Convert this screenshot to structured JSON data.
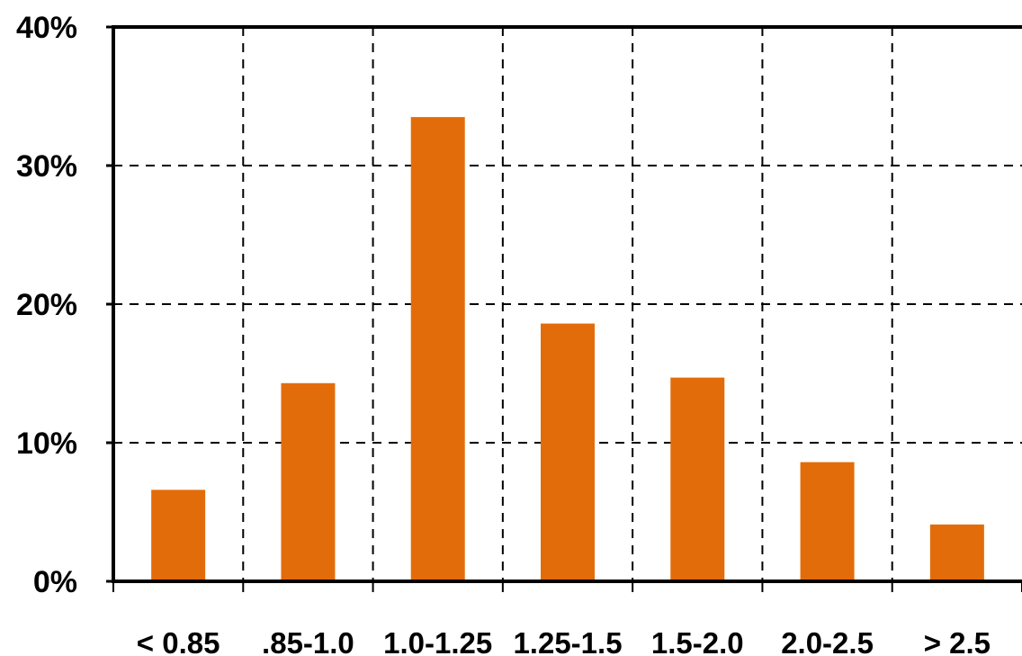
{
  "chart_data": {
    "type": "bar",
    "title": "",
    "xlabel": "",
    "ylabel": "",
    "categories": [
      "< 0.85",
      ".85-1.0",
      "1.0-1.25",
      "1.25-1.5",
      "1.5-2.0",
      "2.0-2.5",
      "> 2.5"
    ],
    "values": [
      6.6,
      14.3,
      33.5,
      18.6,
      14.7,
      8.6,
      4.1
    ],
    "value_unit": "percent",
    "ylim": [
      0,
      40
    ],
    "yticks": [
      0,
      10,
      20,
      30,
      40
    ],
    "ytick_labels": [
      "0%",
      "10%",
      "20%",
      "30%",
      "40%"
    ],
    "grid": true,
    "grid_style": "dashed",
    "legend": "none",
    "bar_color": "#E36C0A"
  }
}
